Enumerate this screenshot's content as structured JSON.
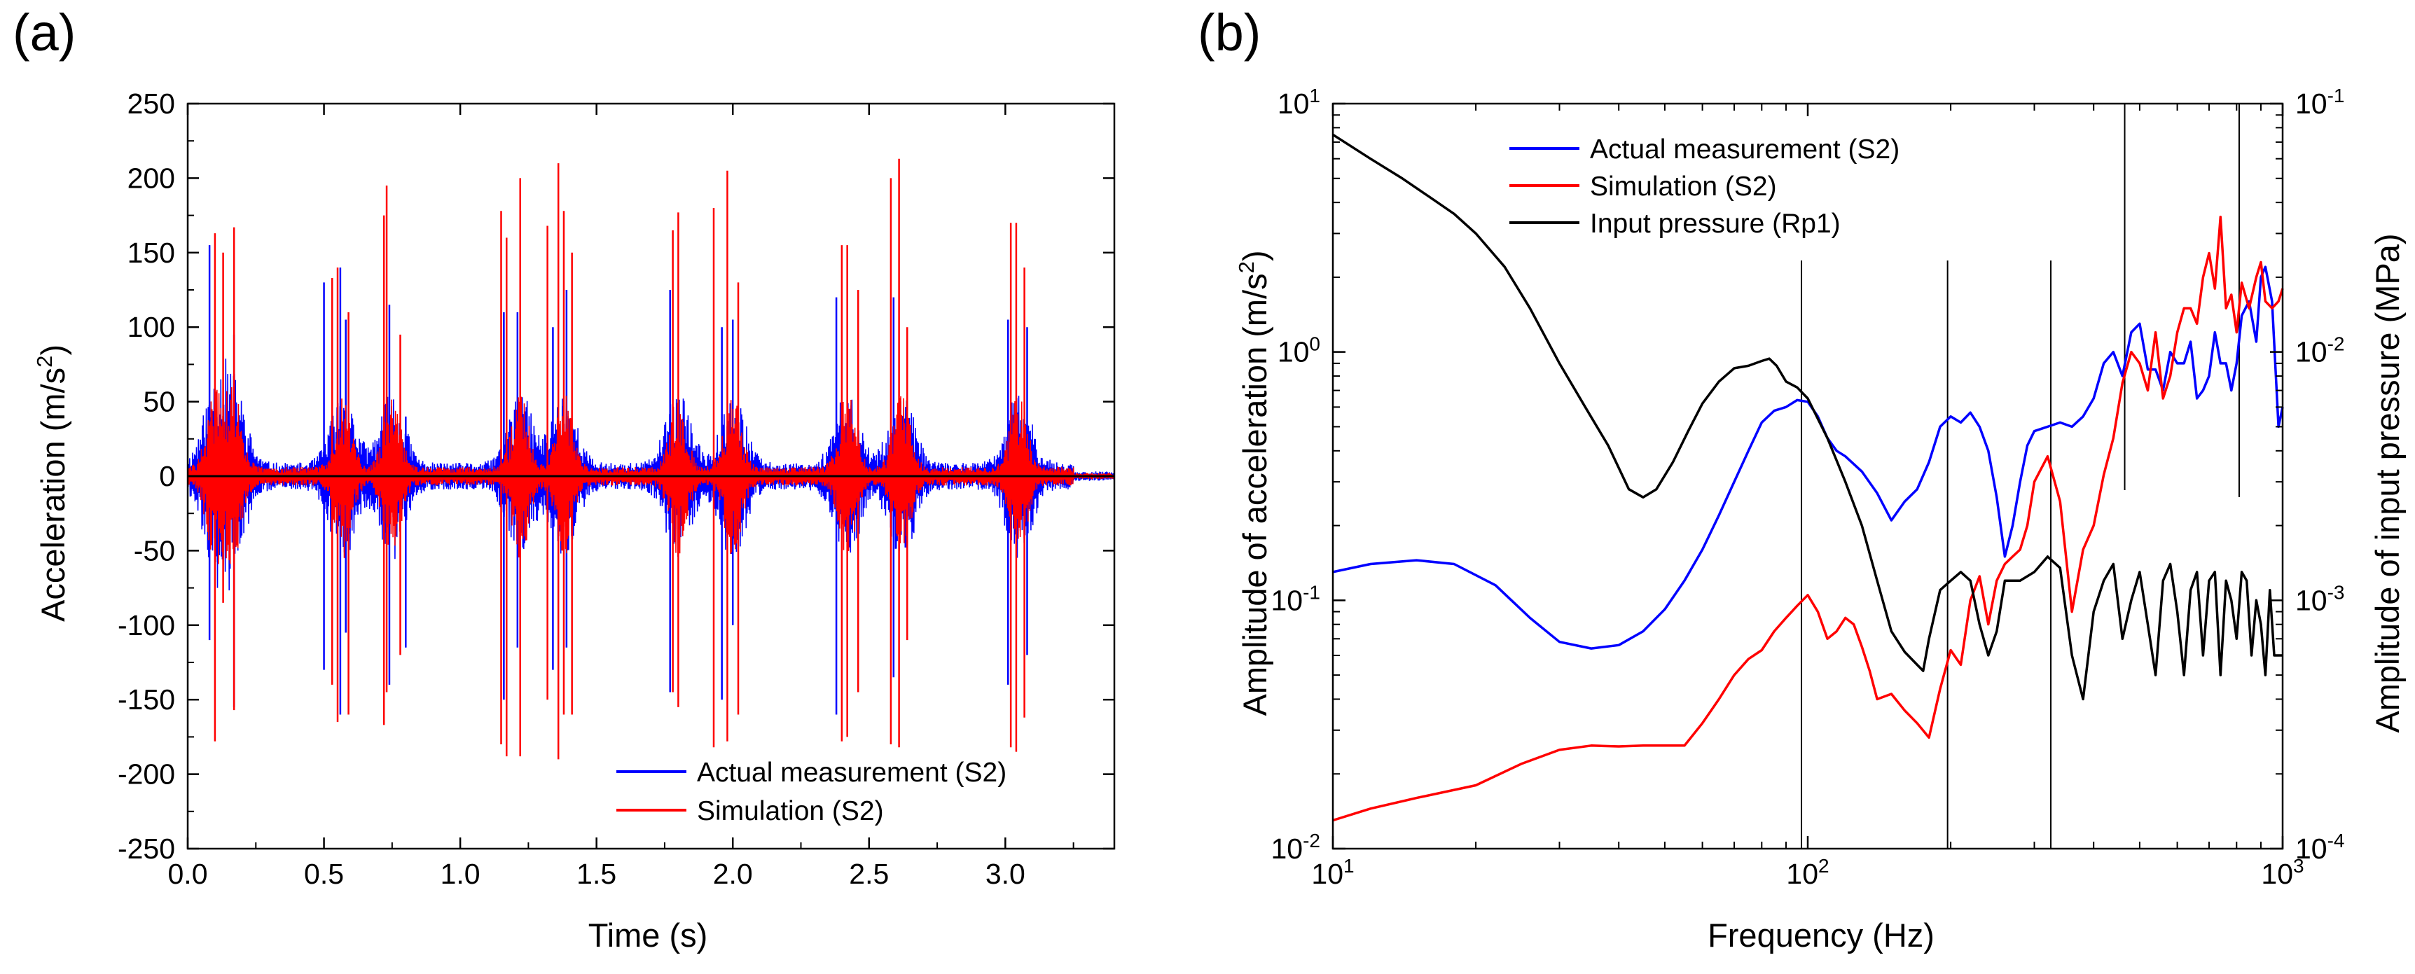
{
  "chart_data": [
    {
      "type": "line",
      "panel_label": "(a)",
      "xlabel": "Time (s)",
      "ylabel_main": "Acceleration (m/s",
      "ylabel_sup": "2",
      "ylabel_end": ")",
      "xlim": [
        0,
        3.4
      ],
      "ylim": [
        -250,
        250
      ],
      "xticks": [
        "0.0",
        "0.5",
        "1.0",
        "1.5",
        "2.0",
        "2.5",
        "3.0"
      ],
      "xtick_values": [
        0,
        0.5,
        1.0,
        1.5,
        2.0,
        2.5,
        3.0
      ],
      "yticks": [
        "250",
        "200",
        "150",
        "100",
        "50",
        "0",
        "-50",
        "-100",
        "-150",
        "-200",
        "-250"
      ],
      "ytick_values": [
        250,
        200,
        150,
        100,
        50,
        0,
        -50,
        -100,
        -150,
        -200,
        -250
      ],
      "legend": [
        {
          "name": "Actual measurement (S2)",
          "color": "#0000ff"
        },
        {
          "name": "Simulation (S2)",
          "color": "#ff0000"
        }
      ],
      "bursts": [
        0.1,
        0.17,
        0.57,
        0.75,
        1.22,
        1.38,
        1.8,
        2.0,
        2.42,
        2.62,
        3.05
      ],
      "series": [
        {
          "name": "Actual measurement (S2)",
          "color": "#0000ff",
          "spikes": [
            {
              "t": 0.08,
              "pos": 155,
              "neg": -110
            },
            {
              "t": 0.17,
              "pos": 95,
              "neg": -155
            },
            {
              "t": 0.5,
              "pos": 130,
              "neg": -130
            },
            {
              "t": 0.56,
              "pos": 140,
              "neg": -160
            },
            {
              "t": 0.58,
              "pos": 105,
              "neg": -105
            },
            {
              "t": 0.74,
              "pos": 115,
              "neg": -140
            },
            {
              "t": 0.8,
              "pos": 40,
              "neg": -115
            },
            {
              "t": 1.16,
              "pos": 110,
              "neg": -150
            },
            {
              "t": 1.21,
              "pos": 110,
              "neg": -115
            },
            {
              "t": 1.34,
              "pos": 100,
              "neg": -130
            },
            {
              "t": 1.39,
              "pos": 125,
              "neg": -115
            },
            {
              "t": 1.77,
              "pos": 125,
              "neg": -145
            },
            {
              "t": 1.96,
              "pos": 100,
              "neg": -150
            },
            {
              "t": 2.0,
              "pos": 105,
              "neg": -100
            },
            {
              "t": 2.38,
              "pos": 120,
              "neg": -160
            },
            {
              "t": 2.59,
              "pos": 120,
              "neg": -135
            },
            {
              "t": 3.01,
              "pos": 105,
              "neg": -140
            },
            {
              "t": 3.08,
              "pos": 100,
              "neg": -120
            }
          ]
        },
        {
          "name": "Simulation (S2)",
          "color": "#ff0000",
          "spikes": [
            {
              "t": 0.1,
              "pos": 163,
              "neg": -178
            },
            {
              "t": 0.13,
              "pos": 150,
              "neg": -85
            },
            {
              "t": 0.17,
              "pos": 167,
              "neg": -157
            },
            {
              "t": 0.53,
              "pos": 133,
              "neg": -140
            },
            {
              "t": 0.55,
              "pos": 140,
              "neg": -165
            },
            {
              "t": 0.59,
              "pos": 110,
              "neg": -160
            },
            {
              "t": 0.72,
              "pos": 175,
              "neg": -167
            },
            {
              "t": 0.73,
              "pos": 195,
              "neg": -145
            },
            {
              "t": 0.78,
              "pos": 95,
              "neg": -120
            },
            {
              "t": 1.15,
              "pos": 178,
              "neg": -180
            },
            {
              "t": 1.17,
              "pos": 160,
              "neg": -188
            },
            {
              "t": 1.22,
              "pos": 200,
              "neg": -188
            },
            {
              "t": 1.32,
              "pos": 168,
              "neg": -150
            },
            {
              "t": 1.36,
              "pos": 210,
              "neg": -190
            },
            {
              "t": 1.38,
              "pos": 178,
              "neg": -160
            },
            {
              "t": 1.41,
              "pos": 150,
              "neg": -160
            },
            {
              "t": 1.78,
              "pos": 165,
              "neg": -145
            },
            {
              "t": 1.8,
              "pos": 177,
              "neg": -155
            },
            {
              "t": 1.93,
              "pos": 180,
              "neg": -182
            },
            {
              "t": 1.98,
              "pos": 205,
              "neg": -178
            },
            {
              "t": 2.02,
              "pos": 130,
              "neg": -160
            },
            {
              "t": 2.4,
              "pos": 155,
              "neg": -178
            },
            {
              "t": 2.42,
              "pos": 155,
              "neg": -175
            },
            {
              "t": 2.46,
              "pos": 125,
              "neg": -145
            },
            {
              "t": 2.58,
              "pos": 200,
              "neg": -180
            },
            {
              "t": 2.61,
              "pos": 213,
              "neg": -182
            },
            {
              "t": 2.64,
              "pos": 100,
              "neg": -110
            },
            {
              "t": 3.02,
              "pos": 170,
              "neg": -182
            },
            {
              "t": 3.04,
              "pos": 170,
              "neg": -185
            },
            {
              "t": 3.07,
              "pos": 140,
              "neg": -162
            }
          ]
        }
      ]
    },
    {
      "type": "line",
      "panel_label": "(b)",
      "xlabel": "Frequency (Hz)",
      "ylabel_left_main": "Amplitude of acceleration (m/s",
      "ylabel_left_sup": "2",
      "ylabel_left_end": ")",
      "ylabel_right": "Amplitude of input pressure (MPa)",
      "xscale": "log",
      "yscale": "log",
      "xlim": [
        10,
        1000
      ],
      "ylim_left": [
        0.01,
        10
      ],
      "ylim_right": [
        0.0001,
        0.1
      ],
      "xtick_values": [
        10,
        100,
        1000
      ],
      "xtick_exponents": [
        "1",
        "2",
        "3"
      ],
      "ytick_left_values": [
        10,
        1,
        0.1,
        0.01
      ],
      "ytick_left_labels": [
        "10",
        "10",
        "10",
        "10"
      ],
      "ytick_left_exponents": [
        "1",
        "0",
        "-1",
        "-2"
      ],
      "ytick_right_values": [
        0.1,
        0.01,
        0.001,
        0.0001
      ],
      "ytick_right_labels": [
        "10",
        "10",
        "10",
        "10"
      ],
      "ytick_right_exponents": [
        "-1",
        "-2",
        "-3",
        "-4"
      ],
      "legend": [
        {
          "name": "Actual measurement (S2)",
          "color": "#0000ff"
        },
        {
          "name": "Simulation (S2)",
          "color": "#ff0000"
        },
        {
          "name": "Input pressure (Rp1)",
          "color": "#000000"
        }
      ],
      "reference_lines_hz": [
        97,
        197,
        325,
        465,
        810
      ],
      "series": [
        {
          "name": "Actual measurement (S2)",
          "color": "#0000ff",
          "axis": "left",
          "x": [
            10,
            12,
            15,
            18,
            22,
            26,
            30,
            35,
            40,
            45,
            50,
            55,
            60,
            65,
            70,
            75,
            80,
            85,
            90,
            95,
            100,
            105,
            110,
            115,
            120,
            130,
            140,
            150,
            160,
            170,
            180,
            190,
            200,
            210,
            220,
            230,
            240,
            250,
            260,
            270,
            280,
            290,
            300,
            320,
            340,
            360,
            380,
            400,
            420,
            440,
            460,
            480,
            500,
            520,
            540,
            560,
            580,
            600,
            620,
            640,
            660,
            680,
            700,
            720,
            740,
            760,
            780,
            800,
            820,
            850,
            880,
            900,
            920,
            950,
            980,
            1000
          ],
          "y": [
            0.13,
            0.14,
            0.145,
            0.14,
            0.115,
            0.085,
            0.068,
            0.064,
            0.066,
            0.075,
            0.092,
            0.12,
            0.16,
            0.22,
            0.3,
            0.4,
            0.52,
            0.58,
            0.6,
            0.64,
            0.63,
            0.55,
            0.45,
            0.4,
            0.38,
            0.33,
            0.27,
            0.21,
            0.25,
            0.28,
            0.36,
            0.5,
            0.55,
            0.52,
            0.57,
            0.5,
            0.4,
            0.26,
            0.15,
            0.2,
            0.3,
            0.42,
            0.48,
            0.5,
            0.52,
            0.5,
            0.55,
            0.65,
            0.9,
            1.0,
            0.8,
            1.2,
            1.3,
            0.85,
            0.85,
            0.7,
            1.0,
            0.9,
            0.9,
            1.1,
            0.65,
            0.7,
            0.8,
            1.2,
            0.9,
            0.9,
            0.7,
            0.9,
            1.4,
            1.6,
            1.1,
            2.0,
            2.2,
            1.6,
            0.5,
            0.6
          ]
        },
        {
          "name": "Simulation (S2)",
          "color": "#ff0000",
          "axis": "left",
          "x": [
            10,
            12,
            15,
            20,
            25,
            30,
            35,
            40,
            45,
            50,
            55,
            60,
            65,
            70,
            75,
            80,
            85,
            90,
            95,
            100,
            105,
            110,
            115,
            120,
            125,
            130,
            135,
            140,
            150,
            160,
            170,
            180,
            190,
            200,
            210,
            220,
            230,
            240,
            250,
            260,
            270,
            280,
            290,
            300,
            320,
            340,
            360,
            380,
            400,
            420,
            440,
            460,
            480,
            500,
            520,
            540,
            560,
            580,
            600,
            620,
            640,
            660,
            680,
            700,
            720,
            740,
            760,
            780,
            800,
            820,
            850,
            880,
            900,
            920,
            950,
            980,
            1000
          ],
          "y": [
            0.013,
            0.0145,
            0.016,
            0.018,
            0.022,
            0.025,
            0.026,
            0.0258,
            0.026,
            0.026,
            0.026,
            0.032,
            0.04,
            0.05,
            0.058,
            0.063,
            0.075,
            0.085,
            0.095,
            0.105,
            0.09,
            0.07,
            0.075,
            0.085,
            0.08,
            0.065,
            0.052,
            0.04,
            0.042,
            0.036,
            0.032,
            0.028,
            0.044,
            0.063,
            0.055,
            0.1,
            0.125,
            0.08,
            0.12,
            0.14,
            0.15,
            0.16,
            0.2,
            0.3,
            0.38,
            0.25,
            0.09,
            0.16,
            0.2,
            0.32,
            0.45,
            0.75,
            1.0,
            0.9,
            0.7,
            1.2,
            0.65,
            0.8,
            1.2,
            1.5,
            1.5,
            1.3,
            2.0,
            2.5,
            1.8,
            3.5,
            1.5,
            1.7,
            1.2,
            1.9,
            1.5,
            2.0,
            2.3,
            1.6,
            1.5,
            1.6,
            1.8
          ]
        },
        {
          "name": "Input pressure (Rp1)",
          "color": "#000000",
          "axis": "right",
          "x": [
            10,
            12,
            14,
            16,
            18,
            20,
            23,
            26,
            30,
            34,
            38,
            42,
            45,
            48,
            52,
            56,
            60,
            65,
            70,
            75,
            80,
            83,
            86,
            90,
            95,
            100,
            110,
            120,
            130,
            140,
            150,
            160,
            170,
            175,
            180,
            190,
            200,
            210,
            220,
            230,
            240,
            250,
            260,
            280,
            300,
            320,
            340,
            360,
            380,
            400,
            420,
            440,
            460,
            480,
            500,
            520,
            540,
            560,
            580,
            600,
            620,
            640,
            660,
            680,
            700,
            720,
            740,
            760,
            780,
            800,
            820,
            840,
            860,
            880,
            900,
            920,
            940,
            960,
            1000
          ],
          "y": [
            0.075,
            0.06,
            0.05,
            0.042,
            0.036,
            0.03,
            0.022,
            0.015,
            0.009,
            0.006,
            0.0042,
            0.0028,
            0.0026,
            0.0028,
            0.0036,
            0.0048,
            0.0062,
            0.0076,
            0.0086,
            0.0088,
            0.0092,
            0.0094,
            0.0088,
            0.0076,
            0.0072,
            0.0065,
            0.0045,
            0.003,
            0.002,
            0.0012,
            0.00075,
            0.00062,
            0.00055,
            0.00052,
            0.0007,
            0.0011,
            0.0012,
            0.0013,
            0.0012,
            0.0008,
            0.0006,
            0.00075,
            0.0012,
            0.0012,
            0.0013,
            0.0015,
            0.00135,
            0.0006,
            0.0004,
            0.0009,
            0.0012,
            0.0014,
            0.0007,
            0.001,
            0.0013,
            0.0008,
            0.0005,
            0.0012,
            0.0014,
            0.0009,
            0.0005,
            0.0011,
            0.0013,
            0.0006,
            0.0012,
            0.0013,
            0.0005,
            0.0012,
            0.001,
            0.0007,
            0.0013,
            0.0012,
            0.0006,
            0.001,
            0.0008,
            0.0005,
            0.0011,
            0.0006,
            0.0006
          ]
        }
      ]
    }
  ]
}
